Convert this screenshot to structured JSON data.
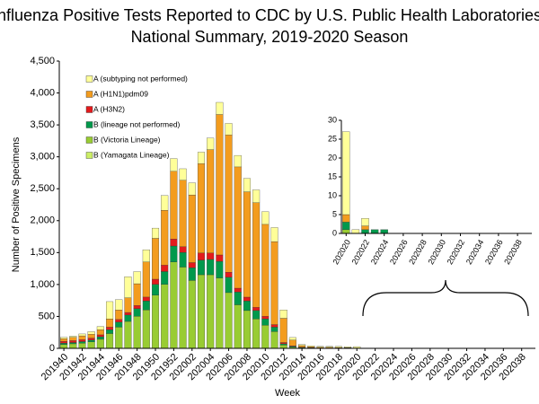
{
  "chart_data": [
    {
      "type": "bar",
      "stacked": true,
      "title": "Influenza Positive Tests Reported to CDC by U.S. Public Health Laboratories,",
      "subtitle": "National Summary, 2019-2020 Season",
      "x_label": "Week",
      "y_label": "Number of Positive Specimens",
      "categories": [
        "201940",
        null,
        "201942",
        null,
        "201944",
        null,
        "201946",
        null,
        "201948",
        null,
        "201950",
        null,
        "201952",
        null,
        "202002",
        null,
        "202004",
        null,
        "202006",
        null,
        "202008",
        null,
        "202010",
        null,
        "202012",
        null,
        "202014",
        null,
        "202016",
        null,
        "202018",
        null,
        "202020",
        null,
        "202022",
        null,
        "202024",
        null,
        "202026",
        null,
        "202028",
        null,
        "202030",
        null,
        "202032",
        null,
        "202034",
        null,
        "202036",
        null,
        "202038",
        null
      ],
      "series": [
        {
          "name": "B (Yamagata Lineage)",
          "color": "#ccee66",
          "values": [
            1,
            1,
            1,
            1,
            2,
            2,
            2,
            2,
            2,
            3,
            3,
            3,
            3,
            3,
            3,
            3,
            3,
            3,
            3,
            2,
            2,
            2,
            2,
            2,
            1,
            0,
            0,
            0,
            0,
            0,
            0,
            0,
            0,
            0,
            0,
            0,
            0,
            0,
            0,
            0,
            0,
            0,
            0,
            0,
            0,
            0,
            0,
            0,
            0,
            0,
            0,
            0
          ]
        },
        {
          "name": "B (Victoria Lineage)",
          "color": "#99cc33",
          "values": [
            60,
            70,
            80,
            100,
            140,
            230,
            330,
            420,
            500,
            600,
            830,
            1000,
            1350,
            1270,
            1060,
            1150,
            1150,
            1100,
            870,
            680,
            590,
            460,
            360,
            260,
            50,
            20,
            10,
            6,
            4,
            4,
            3,
            3,
            1,
            0,
            0,
            0,
            0,
            0,
            0,
            0,
            0,
            0,
            0,
            0,
            0,
            0,
            0,
            0,
            0,
            0,
            0,
            0
          ]
        },
        {
          "name": "B (lineage not performed)",
          "color": "#00994c",
          "values": [
            20,
            20,
            25,
            30,
            40,
            60,
            80,
            100,
            120,
            140,
            170,
            200,
            250,
            230,
            200,
            230,
            240,
            260,
            240,
            200,
            150,
            130,
            100,
            70,
            20,
            10,
            5,
            3,
            2,
            2,
            2,
            2,
            2,
            0,
            1,
            1,
            1,
            0,
            0,
            0,
            0,
            0,
            0,
            0,
            0,
            0,
            0,
            0,
            0,
            0,
            0,
            0
          ]
        },
        {
          "name": "A (H3N2)",
          "color": "#e31a1c",
          "values": [
            30,
            30,
            30,
            30,
            30,
            40,
            40,
            40,
            50,
            60,
            80,
            100,
            110,
            90,
            80,
            110,
            100,
            100,
            80,
            60,
            60,
            50,
            40,
            40,
            20,
            10,
            3,
            2,
            1,
            1,
            1,
            1,
            0,
            0,
            0,
            0,
            0,
            0,
            0,
            0,
            0,
            0,
            0,
            0,
            0,
            0,
            0,
            0,
            0,
            0,
            0,
            0
          ]
        },
        {
          "name": "A (H1N1)pdm09",
          "color": "#f39c1e",
          "values": [
            40,
            50,
            60,
            60,
            80,
            130,
            150,
            230,
            340,
            550,
            640,
            860,
            1060,
            1040,
            1060,
            1400,
            1620,
            2200,
            2150,
            1900,
            1650,
            1640,
            1440,
            1300,
            380,
            90,
            25,
            15,
            10,
            10,
            8,
            6,
            2,
            0,
            1,
            0,
            0,
            0,
            0,
            0,
            0,
            0,
            0,
            0,
            0,
            0,
            0,
            0,
            0,
            0,
            0,
            0
          ]
        },
        {
          "name": "A (subtyping not performed)",
          "color": "#ffff99",
          "values": [
            20,
            20,
            30,
            40,
            50,
            270,
            160,
            330,
            190,
            190,
            160,
            230,
            200,
            180,
            190,
            180,
            180,
            190,
            180,
            180,
            210,
            200,
            200,
            220,
            130,
            40,
            17,
            14,
            13,
            13,
            16,
            13,
            22,
            1,
            2,
            0,
            0,
            0,
            0,
            0,
            0,
            0,
            0,
            0,
            0,
            0,
            0,
            0,
            0,
            0,
            0,
            0
          ]
        }
      ],
      "ylim": [
        0,
        4500
      ],
      "yticks": [
        0,
        500,
        {
          "value": 1000,
          "label": "1,000"
        },
        {
          "value": 1500,
          "label": "1,500"
        },
        {
          "value": 2000,
          "label": "2,000"
        },
        {
          "value": 2500,
          "label": "2,500"
        },
        {
          "value": 3000,
          "label": "3,000"
        },
        {
          "value": 3500,
          "label": "3,500"
        },
        {
          "value": 4000,
          "label": "4,000"
        },
        {
          "value": 4500,
          "label": "4,500"
        }
      ],
      "grid": false
    },
    {
      "type": "bar",
      "stacked": true,
      "categories": [
        "202020",
        null,
        "202022",
        null,
        "202024",
        null,
        "202026",
        null,
        "202028",
        null,
        "202030",
        null,
        "202032",
        null,
        "202034",
        null,
        "202036",
        null,
        "202038",
        null
      ],
      "series": [
        {
          "color": "#ccee66",
          "values": [
            0,
            0,
            0,
            0,
            0,
            0,
            0,
            0,
            0,
            0,
            0,
            0,
            0,
            0,
            0,
            0,
            0,
            0,
            0,
            0
          ]
        },
        {
          "color": "#99cc33",
          "values": [
            1,
            0,
            0,
            0,
            0,
            0,
            0,
            0,
            0,
            0,
            0,
            0,
            0,
            0,
            0,
            0,
            0,
            0,
            0,
            0
          ]
        },
        {
          "color": "#00994c",
          "values": [
            2,
            0,
            1,
            1,
            1,
            0,
            0,
            0,
            0,
            0,
            0,
            0,
            0,
            0,
            0,
            0,
            0,
            0,
            0,
            0
          ]
        },
        {
          "color": "#e31a1c",
          "values": [
            0,
            0,
            0,
            0,
            0,
            0,
            0,
            0,
            0,
            0,
            0,
            0,
            0,
            0,
            0,
            0,
            0,
            0,
            0,
            0
          ]
        },
        {
          "color": "#f39c1e",
          "values": [
            2,
            0,
            1,
            0,
            0,
            0,
            0,
            0,
            0,
            0,
            0,
            0,
            0,
            0,
            0,
            0,
            0,
            0,
            0,
            0
          ]
        },
        {
          "color": "#ffff99",
          "values": [
            22,
            1,
            2,
            0,
            0,
            0,
            0,
            0,
            0,
            0,
            0,
            0,
            0,
            0,
            0,
            0,
            0,
            0,
            0,
            0
          ]
        }
      ],
      "ylim": [
        0,
        30
      ],
      "yticks": [
        0,
        5,
        10,
        15,
        20,
        25,
        30
      ],
      "grid": false
    }
  ]
}
